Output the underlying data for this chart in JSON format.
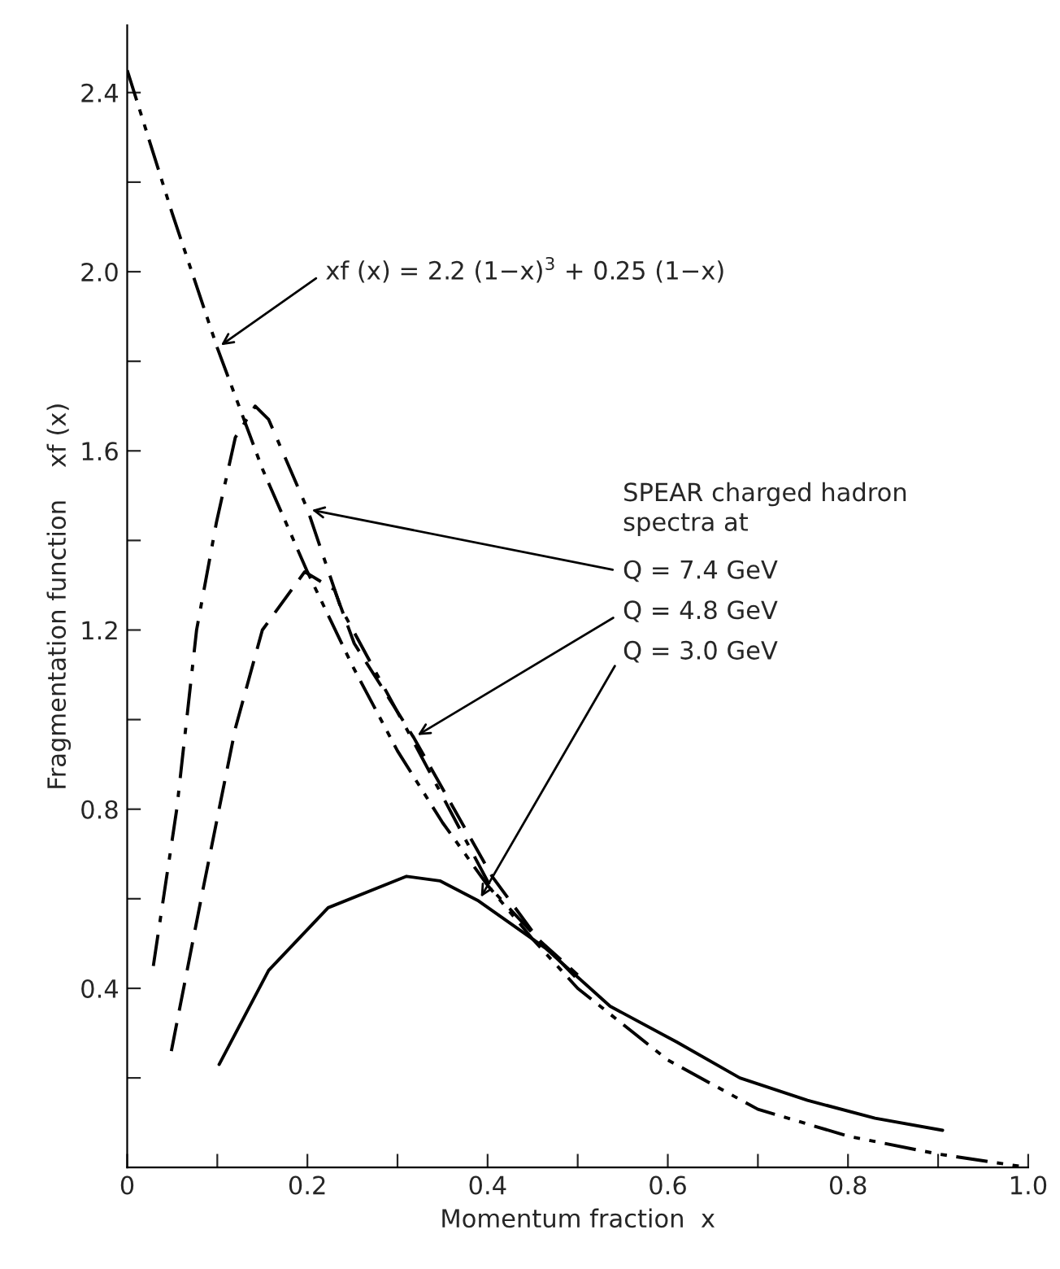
{
  "chart_data": {
    "type": "line",
    "xlabel": "Momentum fraction  x",
    "ylabel": "Fragmentation function    xf (x)",
    "xlim": [
      0,
      1.0
    ],
    "ylim": [
      0,
      2.55
    ],
    "xticks": [
      0,
      {
        "value": 0.1,
        "label": null
      },
      0.2,
      {
        "value": 0.3,
        "label": null
      },
      0.4,
      {
        "value": 0.5,
        "label": null
      },
      0.6,
      {
        "value": 0.7,
        "label": null
      },
      0.8,
      {
        "value": 0.9,
        "label": null
      },
      {
        "value": 1.0,
        "label": "1.0"
      }
    ],
    "yticks": [
      {
        "value": 0.2,
        "label": null
      },
      0.4,
      {
        "value": 0.6,
        "label": null
      },
      0.8,
      {
        "value": 1.0,
        "label": null
      },
      1.2,
      {
        "value": 1.4,
        "label": null
      },
      1.6,
      {
        "value": 1.8,
        "label": null
      },
      {
        "value": 2.0,
        "label": "2.0"
      },
      {
        "value": 2.2,
        "label": null
      },
      2.4
    ],
    "grid": false,
    "legend": false,
    "series": [
      {
        "color": "#000000",
        "line_style": "dashdotdot",
        "x": [
          0,
          0.05,
          0.1,
          0.15,
          0.2,
          0.25,
          0.3,
          0.35,
          0.4,
          0.45,
          0.5,
          0.6,
          0.7,
          0.8,
          0.9,
          1.0
        ],
        "values": [
          2.45,
          2.13,
          1.83,
          1.56,
          1.33,
          1.12,
          0.93,
          0.77,
          0.63,
          0.51,
          0.4,
          0.24,
          0.13,
          0.07,
          0.03,
          0.0
        ]
      },
      {
        "name": "Q = 7.4 GeV",
        "color": "#000000",
        "line_style": "dashdot",
        "x": [
          0.029,
          0.055,
          0.077,
          0.099,
          0.12,
          0.142,
          0.157,
          0.2,
          0.237,
          0.318,
          0.405,
          0.456,
          0.5
        ],
        "values": [
          0.45,
          0.8,
          1.2,
          1.44,
          1.63,
          1.7,
          1.67,
          1.47,
          1.25,
          0.95,
          0.62,
          0.51,
          0.42
        ]
      },
      {
        "name": "Q = 4.8 GeV",
        "color": "#000000",
        "line_style": "dashed",
        "x": [
          0.049,
          0.084,
          0.12,
          0.15,
          0.197,
          0.23,
          0.252,
          0.318,
          0.405,
          0.456,
          0.5
        ],
        "values": [
          0.26,
          0.62,
          0.98,
          1.2,
          1.33,
          1.29,
          1.17,
          0.96,
          0.65,
          0.51,
          0.43
        ]
      },
      {
        "name": "Q = 3.0 GeV",
        "color": "#000000",
        "line_style": "solid",
        "x": [
          0.102,
          0.157,
          0.223,
          0.31,
          0.347,
          0.39,
          0.464,
          0.536,
          0.61,
          0.68,
          0.755,
          0.83,
          0.905
        ],
        "values": [
          0.23,
          0.44,
          0.58,
          0.65,
          0.64,
          0.595,
          0.49,
          0.36,
          0.28,
          0.2,
          0.15,
          0.11,
          0.083
        ]
      }
    ],
    "annotations": [
      {
        "text": "xf (x) = 2.2 (1−x)$^{3}$ + 0.25 (1−x)",
        "x": 0.1,
        "y": 1.83
      },
      "SPEAR charged hadron\nspectra at"
    ]
  }
}
